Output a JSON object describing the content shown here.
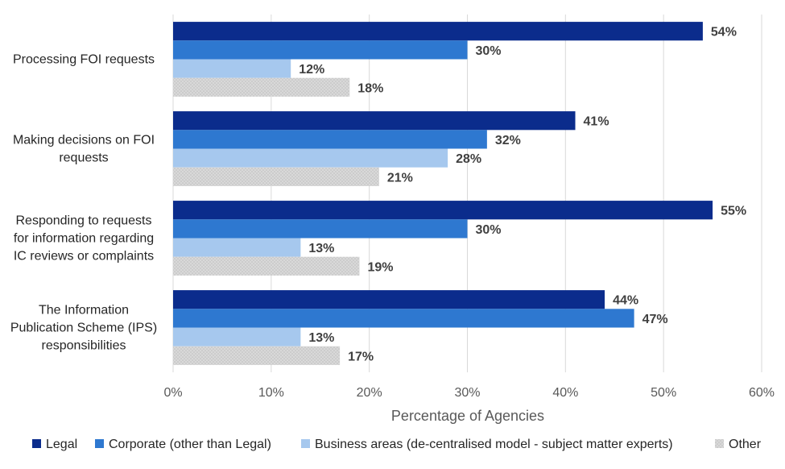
{
  "chart_data": {
    "type": "bar",
    "orientation": "horizontal",
    "categories": [
      "Processing FOI requests",
      "Making decisions on FOI requests",
      "Responding to requests for information regarding IC reviews or complaints",
      "The Information Publication Scheme (IPS) responsibilities"
    ],
    "category_lines": [
      [
        "Processing FOI requests"
      ],
      [
        "Making decisions on FOI",
        "requests"
      ],
      [
        "Responding to requests",
        "for information regarding",
        "IC reviews or complaints"
      ],
      [
        "The Information",
        "Publication Scheme (IPS)",
        "responsibilities"
      ]
    ],
    "series": [
      {
        "name": "Legal",
        "color": "#0b2c8c",
        "values": [
          54,
          41,
          55,
          44
        ]
      },
      {
        "name": "Corporate (other than Legal)",
        "color": "#2e78d0",
        "values": [
          30,
          32,
          30,
          47
        ]
      },
      {
        "name": "Business areas (de-centralised model - subject matter experts)",
        "color": "#a6c8ee",
        "values": [
          12,
          28,
          13,
          13
        ]
      },
      {
        "name": "Other",
        "color": "#d9d9d9",
        "pattern": "dotted",
        "values": [
          18,
          21,
          19,
          17
        ]
      }
    ],
    "x_ticks": [
      "0%",
      "10%",
      "20%",
      "30%",
      "40%",
      "50%",
      "60%"
    ],
    "xlim": [
      0,
      60
    ],
    "xlabel": "Percentage of Agencies",
    "ylabel": "",
    "grid": "vertical",
    "legend_position": "bottom",
    "value_suffix": "%"
  }
}
